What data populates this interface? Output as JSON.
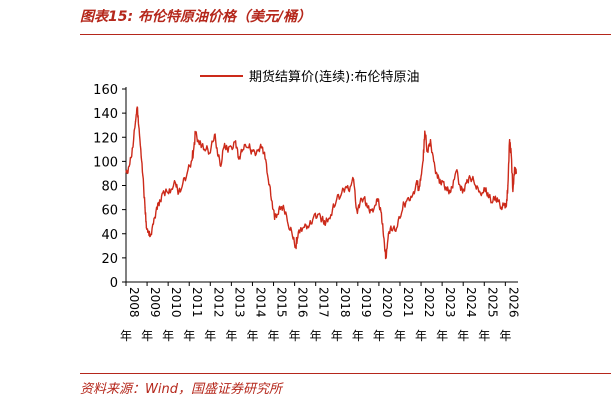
{
  "header": {
    "title": "图表15:   布伦特原油价格（美元/桶）"
  },
  "footer": {
    "source": "资料来源：Wind，国盛证券研究所"
  },
  "colors": {
    "series": "#cc2a1a",
    "accent": "#b5271b"
  },
  "chart_data": {
    "type": "line",
    "title": "",
    "xlabel": "",
    "ylabel": "",
    "ylim": [
      0,
      160
    ],
    "yticks": [
      0,
      20,
      40,
      60,
      80,
      100,
      120,
      140,
      160
    ],
    "xlim": [
      2008.0,
      2026.6
    ],
    "xtick_values": [
      2008,
      2009,
      2010,
      2011,
      2012,
      2013,
      2014,
      2015,
      2016,
      2017,
      2018,
      2019,
      2020,
      2021,
      2022,
      2023,
      2024,
      2025,
      2026
    ],
    "xtick_labels": [
      "2008年",
      "2009年",
      "2010年",
      "2011年",
      "2012年",
      "2013年",
      "2014年",
      "2015年",
      "2016年",
      "2017年",
      "2018年",
      "2019年",
      "2020年",
      "2021年",
      "2022年",
      "2023年",
      "2024年",
      "2025年",
      "2026年"
    ],
    "legend_position": "top",
    "grid": false,
    "series": [
      {
        "name": "期货结算价(连续):布伦特原油",
        "x": [
          2008.0,
          2008.15,
          2008.3,
          2008.45,
          2008.53,
          2008.6,
          2008.7,
          2008.8,
          2008.9,
          2008.97,
          2009.05,
          2009.15,
          2009.3,
          2009.45,
          2009.6,
          2009.75,
          2009.9,
          2010.1,
          2010.35,
          2010.5,
          2010.7,
          2010.9,
          2011.1,
          2011.2,
          2011.3,
          2011.45,
          2011.6,
          2011.8,
          2012.0,
          2012.2,
          2012.35,
          2012.5,
          2012.65,
          2012.8,
          2013.0,
          2013.2,
          2013.35,
          2013.5,
          2013.7,
          2013.9,
          2014.1,
          2014.3,
          2014.45,
          2014.6,
          2014.75,
          2014.9,
          2015.05,
          2015.2,
          2015.35,
          2015.5,
          2015.7,
          2015.9,
          2016.05,
          2016.15,
          2016.3,
          2016.5,
          2016.7,
          2016.9,
          2017.1,
          2017.3,
          2017.45,
          2017.6,
          2017.8,
          2018.0,
          2018.2,
          2018.4,
          2018.6,
          2018.8,
          2018.95,
          2019.1,
          2019.3,
          2019.45,
          2019.6,
          2019.8,
          2019.95,
          2020.1,
          2020.2,
          2020.3,
          2020.35,
          2020.45,
          2020.6,
          2020.8,
          2021.0,
          2021.2,
          2021.4,
          2021.6,
          2021.8,
          2021.9,
          2022.0,
          2022.1,
          2022.18,
          2022.3,
          2022.45,
          2022.6,
          2022.75,
          2022.9,
          2023.05,
          2023.2,
          2023.35,
          2023.5,
          2023.7,
          2023.85,
          2024.0,
          2024.15,
          2024.3,
          2024.5,
          2024.7,
          2024.9,
          2025.05,
          2025.2,
          2025.35,
          2025.5,
          2025.65,
          2025.8,
          2025.95,
          2026.05,
          2026.12,
          2026.2,
          2026.28,
          2026.36,
          2026.44,
          2026.52
        ],
        "y": [
          91,
          96,
          111,
          133,
          145,
          130,
          110,
          88,
          62,
          45,
          42,
          38,
          48,
          62,
          68,
          74,
          77,
          74,
          82,
          74,
          82,
          90,
          100,
          108,
          124,
          116,
          113,
          110,
          107,
          122,
          105,
          96,
          112,
          111,
          112,
          117,
          102,
          108,
          112,
          110,
          108,
          110,
          112,
          102,
          85,
          68,
          52,
          56,
          62,
          60,
          47,
          38,
          30,
          37,
          45,
          48,
          47,
          54,
          56,
          52,
          47,
          52,
          60,
          69,
          72,
          78,
          75,
          85,
          60,
          65,
          70,
          62,
          60,
          63,
          67,
          58,
          42,
          25,
          21,
          40,
          43,
          42,
          53,
          65,
          70,
          72,
          84,
          76,
          88,
          101,
          125,
          108,
          118,
          100,
          90,
          85,
          83,
          78,
          76,
          78,
          93,
          80,
          77,
          82,
          88,
          84,
          78,
          74,
          75,
          70,
          66,
          68,
          67,
          62,
          64,
          63,
          80,
          118,
          105,
          75,
          95,
          90
        ]
      }
    ]
  }
}
